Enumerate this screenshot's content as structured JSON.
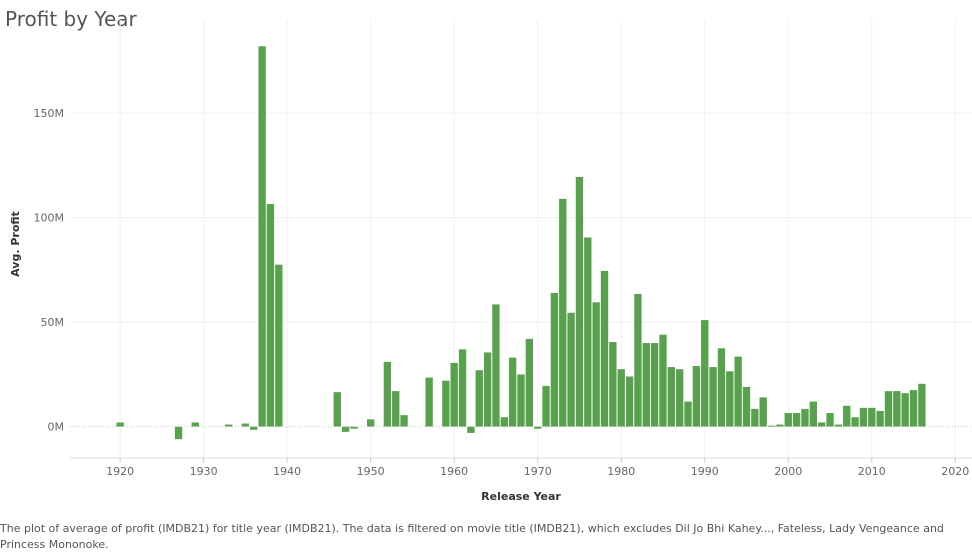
{
  "title": "Profit by Year",
  "caption": "The plot of average of profit (IMDB21) for title year (IMDB21). The data is filtered on movie title (IMDB21), which excludes Dil Jo Bhi Kahey..., Fateless, Lady Vengeance and Princess Mononoke.",
  "colors": {
    "bar": "#59a14f",
    "grid": "#f0f0f0",
    "zero": "#c8c8c8",
    "axis": "#dddddd"
  },
  "chart_data": {
    "type": "bar",
    "title": "Profit by Year",
    "xlabel": "Release Year",
    "ylabel": "Avg. Profit",
    "xlim": [
      1914,
      2022
    ],
    "ylim": [
      -15000000,
      185000000
    ],
    "x_ticks": [
      1920,
      1930,
      1940,
      1950,
      1960,
      1970,
      1980,
      1990,
      2000,
      2010,
      2020
    ],
    "x_tick_labels": [
      "1920",
      "1930",
      "1940",
      "1950",
      "1960",
      "1970",
      "1980",
      "1990",
      "2000",
      "2010",
      "2020"
    ],
    "y_ticks": [
      0,
      50000000,
      100000000,
      150000000
    ],
    "y_tick_labels": [
      "0M",
      "50M",
      "100M",
      "150M"
    ],
    "grid": true,
    "x": [
      1920,
      1927,
      1929,
      1933,
      1935,
      1936,
      1937,
      1938,
      1939,
      1946,
      1947,
      1948,
      1950,
      1952,
      1953,
      1954,
      1957,
      1959,
      1960,
      1961,
      1962,
      1963,
      1964,
      1965,
      1966,
      1967,
      1968,
      1969,
      1970,
      1971,
      1972,
      1973,
      1974,
      1975,
      1976,
      1977,
      1978,
      1979,
      1980,
      1981,
      1982,
      1983,
      1984,
      1985,
      1986,
      1987,
      1988,
      1989,
      1990,
      1991,
      1992,
      1993,
      1994,
      1995,
      1996,
      1997,
      1998,
      1999,
      2000,
      2001,
      2002,
      2003,
      2004,
      2005,
      2006,
      2007,
      2008,
      2009,
      2010,
      2011,
      2012,
      2013,
      2014,
      2015,
      2016
    ],
    "values": [
      2000000,
      -6000000,
      2000000,
      1000000,
      1500000,
      -1500000,
      182000000,
      106500000,
      77500000,
      16500000,
      -2500000,
      -1000000,
      3500000,
      31000000,
      17000000,
      5500000,
      23500000,
      22000000,
      30500000,
      37000000,
      -3000000,
      27000000,
      35500000,
      58500000,
      4500000,
      33000000,
      25000000,
      42000000,
      -1000000,
      19500000,
      64000000,
      109000000,
      54500000,
      119500000,
      90500000,
      59500000,
      74500000,
      40500000,
      27500000,
      24000000,
      63500000,
      40000000,
      40000000,
      44000000,
      28500000,
      27500000,
      12000000,
      29000000,
      51000000,
      28500000,
      37500000,
      26500000,
      33500000,
      19000000,
      8500000,
      14000000,
      500000,
      1000000,
      6500000,
      6500000,
      8500000,
      12000000,
      2000000,
      6500000,
      1000000,
      10000000,
      4500000,
      9000000,
      9000000,
      7500000,
      17000000,
      17000000,
      16000000,
      17500000,
      20500000
    ]
  }
}
